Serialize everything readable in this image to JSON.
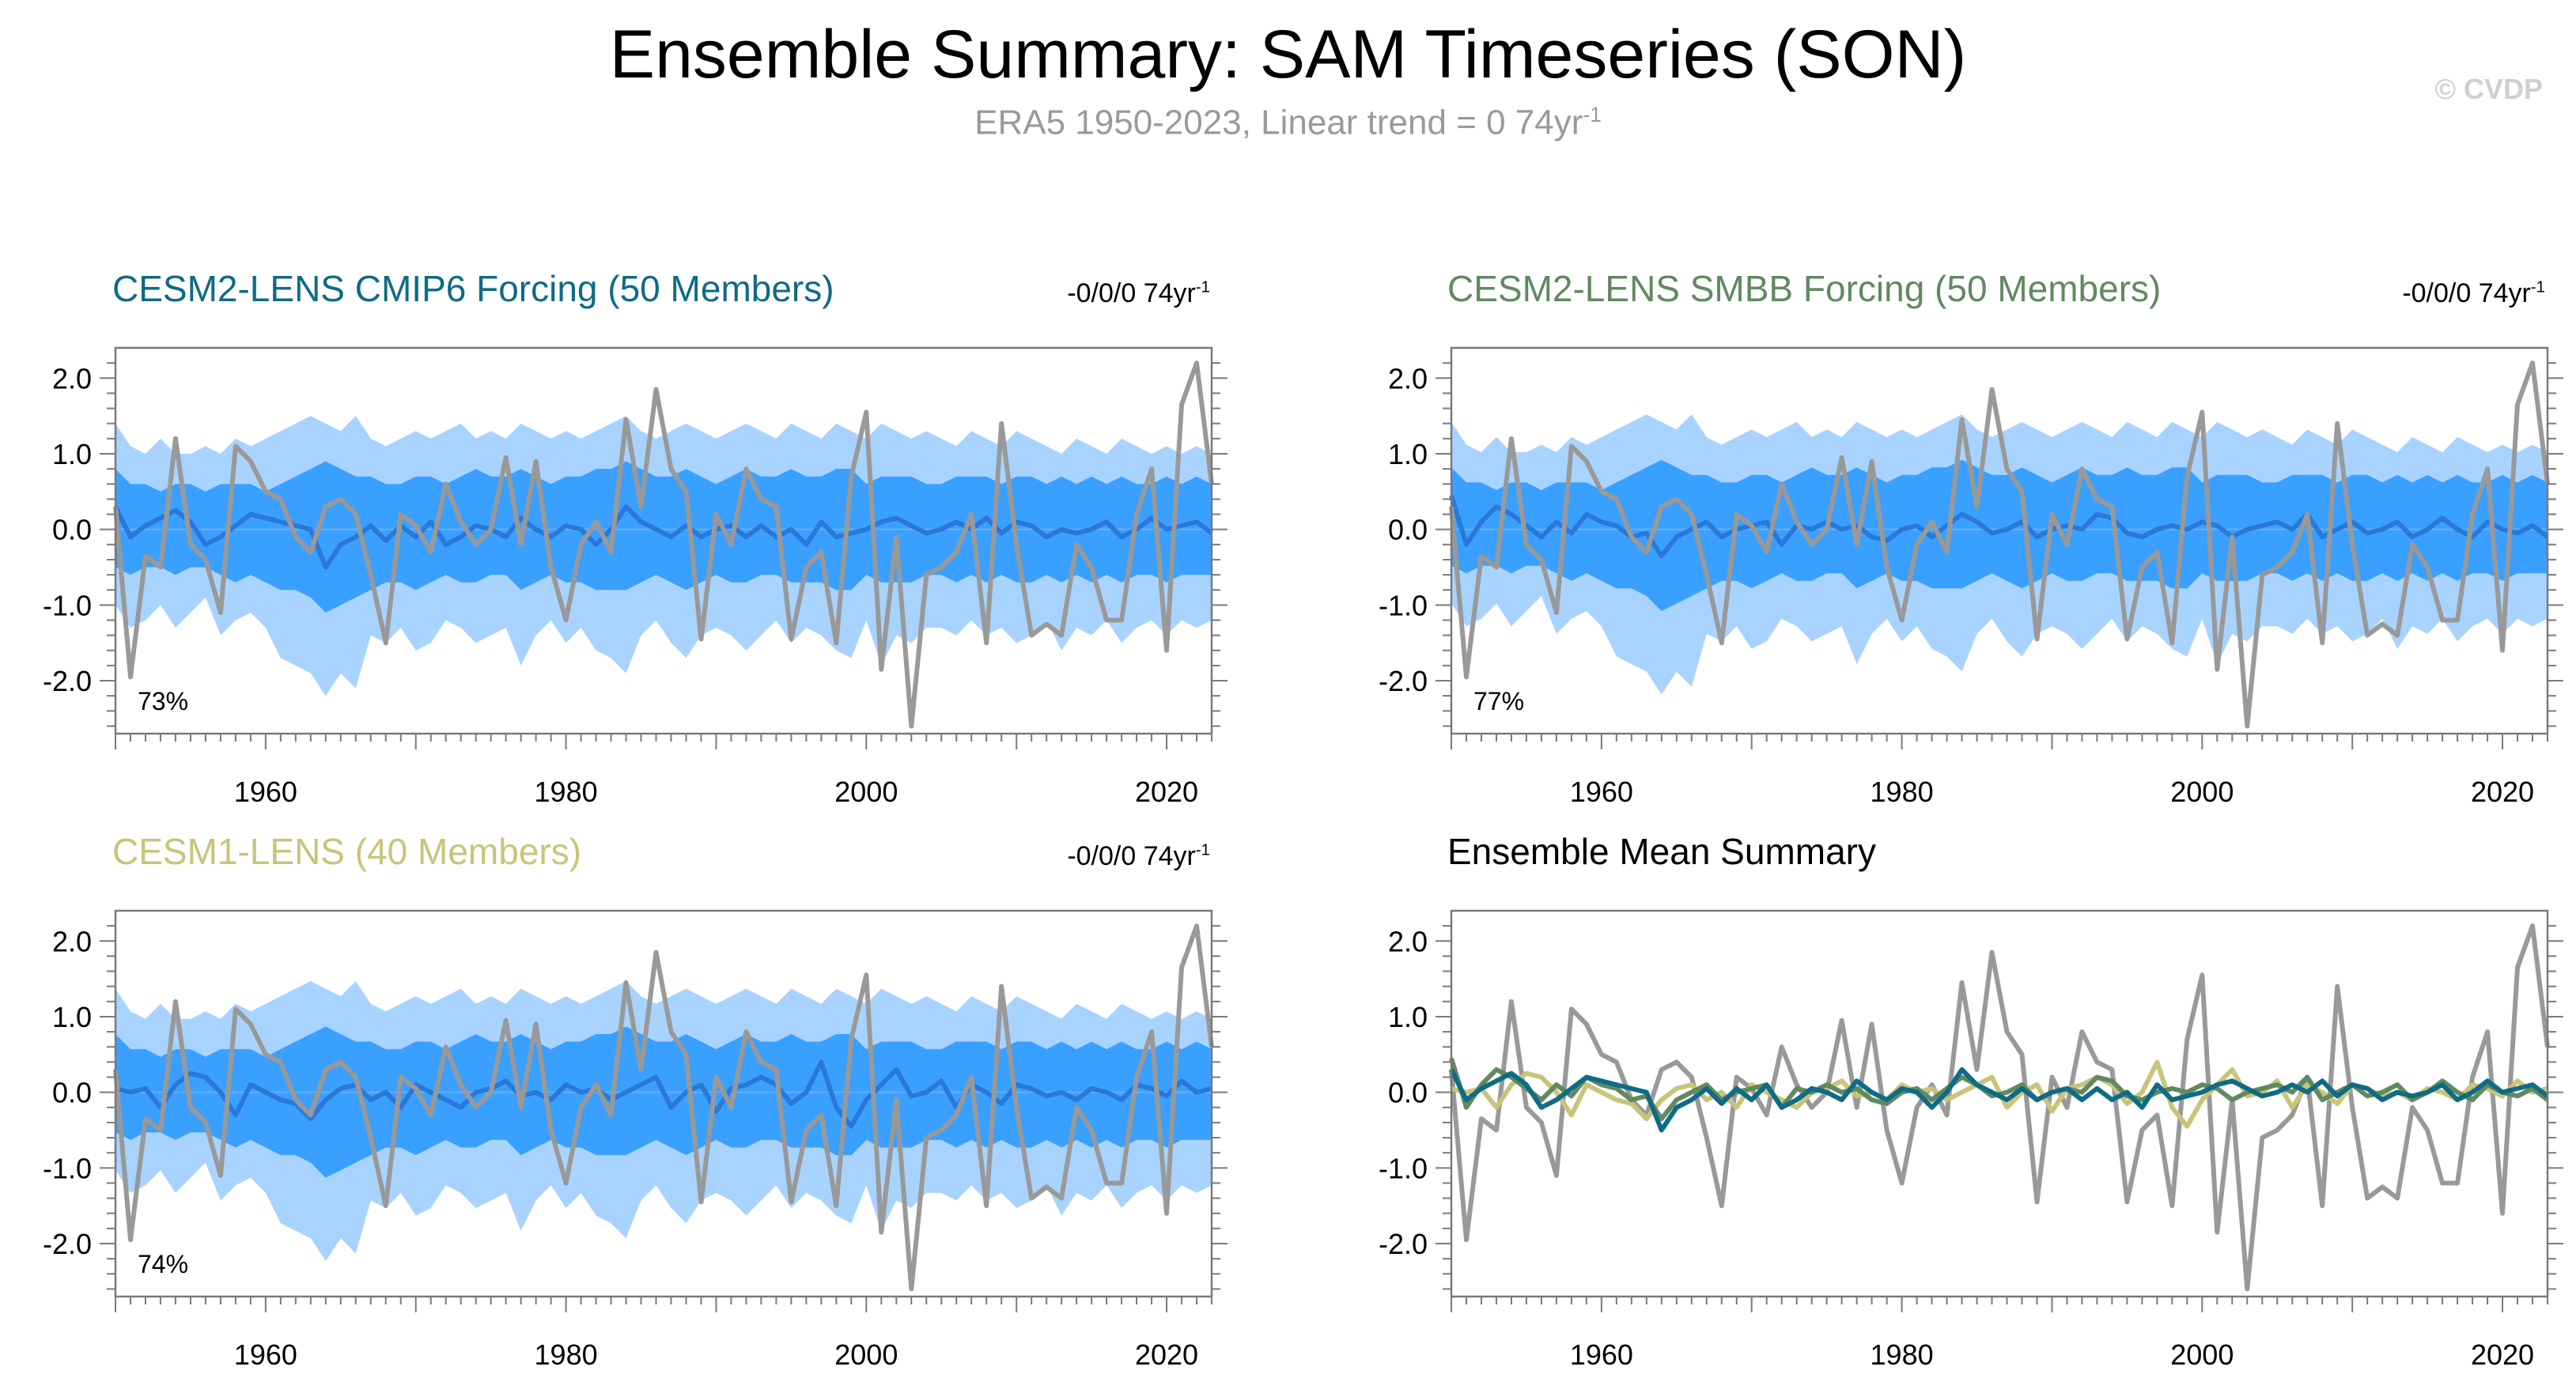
{
  "header": {
    "title": "Ensemble Summary: SAM Timeseries (SON)",
    "subtitle": "ERA5 1950-2023, Linear trend = 0 74yr",
    "subtitle_sup": "-1",
    "credit": "© CVDP"
  },
  "colors": {
    "obs": "#999999",
    "outer_band": "#a9d3ff",
    "inner_band": "#3aa0ff",
    "ens_mean": "#2a78d8",
    "cesm2_cmip6": "#0f6b86",
    "cesm2_smbb": "#5f8a5f",
    "cesm1": "#c8c47a"
  },
  "panels": [
    {
      "title": "CESM2-LENS CMIP6 Forcing (50 Members)",
      "title_color": "#0f6b86",
      "trend": "-0/0/0 74yr",
      "trend_sup": "-1",
      "pct": "73%"
    },
    {
      "title": "CESM2-LENS SMBB Forcing (50 Members)",
      "title_color": "#5f8a5f",
      "trend": "-0/0/0 74yr",
      "trend_sup": "-1",
      "pct": "77%"
    },
    {
      "title": "CESM1-LENS (40 Members)",
      "title_color": "#c8c47a",
      "trend": "-0/0/0 74yr",
      "trend_sup": "-1",
      "pct": "74%"
    },
    {
      "title": "Ensemble Mean Summary",
      "title_color": "#000000",
      "trend": "",
      "trend_sup": "",
      "pct": ""
    }
  ],
  "chart_data": {
    "type": "line",
    "xlim": [
      1950,
      2023
    ],
    "ylim": [
      -2.7,
      2.4
    ],
    "x_ticks": [
      "1960",
      "1980",
      "2000",
      "2020"
    ],
    "y_ticks": [
      "2.0",
      "1.0",
      "0.0",
      "-1.0",
      "-2.0"
    ],
    "years": [
      1950,
      1951,
      1952,
      1953,
      1954,
      1955,
      1956,
      1957,
      1958,
      1959,
      1960,
      1961,
      1962,
      1963,
      1964,
      1965,
      1966,
      1967,
      1968,
      1969,
      1970,
      1971,
      1972,
      1973,
      1974,
      1975,
      1976,
      1977,
      1978,
      1979,
      1980,
      1981,
      1982,
      1983,
      1984,
      1985,
      1986,
      1987,
      1988,
      1989,
      1990,
      1991,
      1992,
      1993,
      1994,
      1995,
      1996,
      1997,
      1998,
      1999,
      2000,
      2001,
      2002,
      2003,
      2004,
      2005,
      2006,
      2007,
      2008,
      2009,
      2010,
      2011,
      2012,
      2013,
      2014,
      2015,
      2016,
      2017,
      2018,
      2019,
      2020,
      2021,
      2022,
      2023
    ],
    "obs": [
      0.3,
      -1.95,
      -0.35,
      -0.5,
      1.2,
      -0.2,
      -0.4,
      -1.1,
      1.1,
      0.9,
      0.5,
      0.4,
      -0.1,
      -0.3,
      0.3,
      0.4,
      0.2,
      -0.6,
      -1.5,
      0.2,
      0.05,
      -0.3,
      0.6,
      0.1,
      -0.2,
      0.0,
      0.95,
      -0.2,
      0.9,
      -0.5,
      -1.2,
      -0.2,
      0.1,
      -0.3,
      1.45,
      0.3,
      1.85,
      0.8,
      0.5,
      -1.45,
      0.2,
      -0.2,
      0.8,
      0.4,
      0.3,
      -1.45,
      -0.5,
      -0.3,
      -1.5,
      0.7,
      1.55,
      -1.85,
      -0.1,
      -2.6,
      -0.6,
      -0.5,
      -0.3,
      0.2,
      -1.5,
      1.4,
      -0.2,
      -1.4,
      -1.25,
      -1.4,
      -0.2,
      -0.5,
      -1.2,
      -1.2,
      0.2,
      0.8,
      -1.6,
      1.65,
      2.2,
      0.6
    ],
    "ens_cmip6": [
      0.3,
      -0.1,
      0.05,
      0.15,
      0.25,
      0.1,
      -0.2,
      -0.1,
      0.05,
      0.2,
      0.15,
      0.1,
      0.05,
      0.0,
      -0.5,
      -0.2,
      -0.1,
      0.05,
      -0.15,
      0.05,
      -0.1,
      0.1,
      -0.2,
      -0.1,
      0.05,
      0.0,
      -0.1,
      0.15,
      0.0,
      -0.1,
      0.05,
      0.0,
      -0.2,
      0.0,
      0.3,
      0.1,
      0.0,
      -0.1,
      0.05,
      -0.1,
      0.0,
      0.05,
      -0.1,
      0.05,
      -0.1,
      0.0,
      -0.2,
      0.1,
      -0.1,
      -0.05,
      0.0,
      0.1,
      0.15,
      0.05,
      -0.05,
      0.0,
      0.1,
      0.0,
      0.15,
      -0.05,
      0.1,
      0.05,
      -0.1,
      0.0,
      -0.05,
      0.0,
      0.1,
      -0.1,
      0.0,
      0.15,
      0.0,
      0.05,
      0.1,
      -0.05
    ],
    "ens_smbb": [
      0.45,
      -0.2,
      0.1,
      0.3,
      0.2,
      0.05,
      -0.1,
      0.1,
      -0.05,
      0.2,
      0.1,
      0.05,
      -0.1,
      -0.05,
      -0.35,
      -0.1,
      0.0,
      0.1,
      -0.1,
      0.0,
      0.05,
      0.1,
      -0.2,
      0.05,
      0.0,
      0.1,
      0.0,
      0.05,
      -0.1,
      -0.15,
      0.0,
      0.05,
      -0.1,
      0.05,
      0.2,
      0.1,
      -0.05,
      0.0,
      0.1,
      -0.1,
      0.0,
      0.05,
      0.0,
      0.2,
      0.15,
      -0.05,
      -0.1,
      0.0,
      0.05,
      0.0,
      0.1,
      0.05,
      -0.1,
      0.0,
      0.05,
      0.1,
      0.0,
      0.2,
      -0.1,
      0.0,
      0.1,
      -0.05,
      0.0,
      0.1,
      -0.1,
      0.0,
      0.15,
      0.0,
      -0.1,
      0.1,
      0.0,
      -0.05,
      0.05,
      -0.1
    ],
    "ens_cesm1": [
      0.05,
      0.0,
      0.05,
      -0.2,
      0.1,
      0.25,
      0.2,
      0.0,
      -0.3,
      0.1,
      0.0,
      -0.1,
      -0.15,
      -0.35,
      -0.1,
      0.05,
      0.1,
      -0.1,
      0.0,
      -0.2,
      0.1,
      0.0,
      -0.1,
      -0.2,
      0.0,
      0.05,
      0.15,
      -0.05,
      0.0,
      -0.1,
      0.1,
      0.0,
      0.05,
      -0.1,
      0.0,
      0.1,
      0.2,
      -0.2,
      0.0,
      0.1,
      -0.25,
      0.05,
      0.1,
      0.2,
      0.1,
      -0.15,
      0.0,
      0.4,
      -0.2,
      -0.45,
      -0.1,
      0.1,
      0.3,
      -0.05,
      0.0,
      0.15,
      -0.2,
      0.1,
      0.0,
      -0.15,
      0.1,
      0.05,
      -0.05,
      0.0,
      -0.1,
      0.05,
      0.0,
      -0.1,
      0.1,
      0.05,
      -0.05,
      0.15,
      0.0,
      0.05
    ],
    "bands": {
      "p10": [
        -1.0,
        -1.3,
        -1.2,
        -1.0,
        -1.3,
        -1.1,
        -0.9,
        -1.4,
        -1.2,
        -1.1,
        -1.3,
        -1.7,
        -1.8,
        -1.9,
        -2.2,
        -1.9,
        -2.1,
        -1.4,
        -1.5,
        -1.3,
        -1.6,
        -1.5,
        -1.2,
        -1.3,
        -1.5,
        -1.4,
        -1.3,
        -1.8,
        -1.4,
        -1.2,
        -1.5,
        -1.3,
        -1.6,
        -1.7,
        -1.9,
        -1.4,
        -1.2,
        -1.5,
        -1.7,
        -1.4,
        -1.3,
        -1.4,
        -1.6,
        -1.4,
        -1.2,
        -1.5,
        -1.3,
        -1.4,
        -1.6,
        -1.7,
        -1.2,
        -1.8,
        -1.4,
        -1.5,
        -1.3,
        -1.3,
        -1.4,
        -1.2,
        -1.4,
        -1.3,
        -1.5,
        -1.4,
        -1.2,
        -1.6,
        -1.3,
        -1.4,
        -1.2,
        -1.5,
        -1.3,
        -1.2,
        -1.4,
        -1.2,
        -1.3,
        -1.2
      ],
      "p25": [
        -0.5,
        -0.6,
        -0.5,
        -0.5,
        -0.6,
        -0.5,
        -0.5,
        -0.6,
        -0.7,
        -0.6,
        -0.7,
        -0.8,
        -0.8,
        -0.9,
        -1.1,
        -1.0,
        -0.9,
        -0.8,
        -0.7,
        -0.7,
        -0.8,
        -0.7,
        -0.6,
        -0.7,
        -0.7,
        -0.6,
        -0.6,
        -0.8,
        -0.7,
        -0.6,
        -0.7,
        -0.7,
        -0.8,
        -0.8,
        -0.8,
        -0.7,
        -0.6,
        -0.7,
        -0.8,
        -0.7,
        -0.6,
        -0.7,
        -0.7,
        -0.6,
        -0.6,
        -0.7,
        -0.7,
        -0.7,
        -0.8,
        -0.8,
        -0.6,
        -0.7,
        -0.7,
        -0.7,
        -0.6,
        -0.6,
        -0.7,
        -0.6,
        -0.7,
        -0.6,
        -0.7,
        -0.7,
        -0.6,
        -0.7,
        -0.6,
        -0.7,
        -0.6,
        -0.7,
        -0.6,
        -0.6,
        -0.7,
        -0.6,
        -0.6,
        -0.6
      ],
      "p75": [
        0.8,
        0.6,
        0.6,
        0.5,
        0.6,
        0.6,
        0.5,
        0.6,
        0.6,
        0.6,
        0.5,
        0.6,
        0.7,
        0.8,
        0.9,
        0.8,
        0.7,
        0.7,
        0.6,
        0.6,
        0.7,
        0.7,
        0.6,
        0.7,
        0.8,
        0.7,
        0.7,
        0.8,
        0.7,
        0.6,
        0.7,
        0.7,
        0.8,
        0.8,
        0.9,
        0.8,
        0.7,
        0.7,
        0.8,
        0.7,
        0.6,
        0.7,
        0.8,
        0.7,
        0.7,
        0.8,
        0.7,
        0.7,
        0.8,
        0.8,
        0.6,
        0.7,
        0.7,
        0.7,
        0.6,
        0.6,
        0.7,
        0.7,
        0.7,
        0.6,
        0.7,
        0.7,
        0.6,
        0.7,
        0.6,
        0.7,
        0.6,
        0.7,
        0.6,
        0.6,
        0.7,
        0.6,
        0.7,
        0.6
      ],
      "p90": [
        1.4,
        1.1,
        1.0,
        1.2,
        1.0,
        1.0,
        1.1,
        1.0,
        1.2,
        1.1,
        1.2,
        1.3,
        1.4,
        1.5,
        1.4,
        1.3,
        1.5,
        1.2,
        1.1,
        1.2,
        1.3,
        1.2,
        1.3,
        1.4,
        1.2,
        1.3,
        1.2,
        1.4,
        1.3,
        1.2,
        1.3,
        1.2,
        1.3,
        1.4,
        1.5,
        1.3,
        1.2,
        1.3,
        1.4,
        1.3,
        1.2,
        1.3,
        1.4,
        1.3,
        1.2,
        1.4,
        1.3,
        1.2,
        1.4,
        1.3,
        1.2,
        1.4,
        1.3,
        1.2,
        1.3,
        1.2,
        1.1,
        1.3,
        1.2,
        1.1,
        1.3,
        1.2,
        1.1,
        1.0,
        1.2,
        1.1,
        1.0,
        1.2,
        1.1,
        1.0,
        1.1,
        1.0,
        1.1,
        1.0
      ]
    }
  }
}
